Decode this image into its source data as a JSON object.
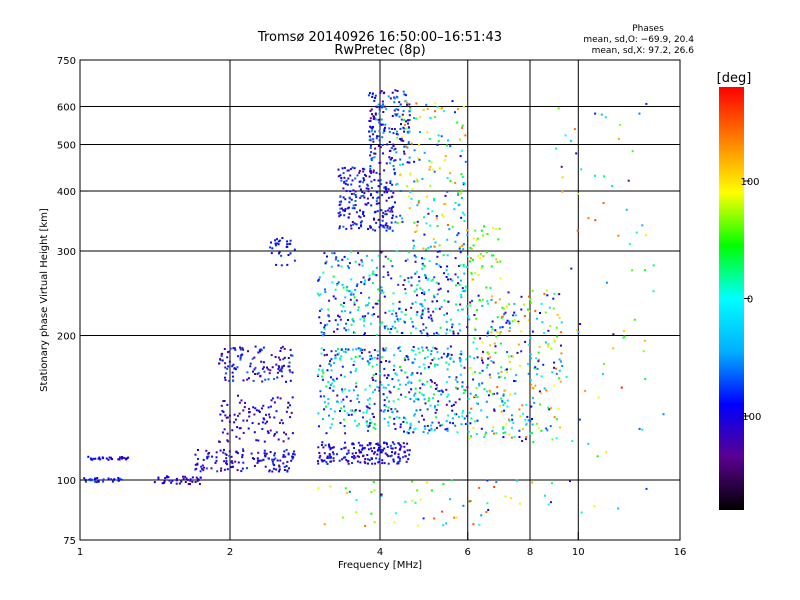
{
  "chart_data": {
    "type": "scatter",
    "title": "Tromsø 20140926 16:50:00–16:51:43",
    "subtitle": "RwPretec (8p)",
    "xlabel": "Frequency [MHz]",
    "ylabel": "Stationary phase Virtual Height [km]",
    "x_scale": "log",
    "y_scale": "log",
    "xlim": [
      1,
      16
    ],
    "ylim": [
      75,
      750
    ],
    "x_ticks": [
      1,
      2,
      4,
      6,
      8,
      10,
      16
    ],
    "y_ticks": [
      75,
      100,
      200,
      300,
      400,
      500,
      600,
      750
    ],
    "x_grid": [
      2,
      4,
      6,
      8,
      10
    ],
    "y_grid": [
      100,
      200,
      300,
      400,
      500,
      600
    ],
    "grid": true,
    "stats": {
      "heading": "Phases",
      "line1": "mean, sd,O: −69.9, 20.4",
      "line2": "mean, sd,X:  97.2, 26.6"
    },
    "colorbar": {
      "label": "[deg]",
      "min": -180,
      "max": 180,
      "ticks": [
        100,
        0,
        -100
      ],
      "colors": [
        "#000000",
        "#5a0090",
        "#0000ff",
        "#00b0ff",
        "#00ffff",
        "#00ff00",
        "#ffff00",
        "#ff8000",
        "#ff0000"
      ]
    },
    "clusters": [
      {
        "f": [
          1.0,
          1.25
        ],
        "h": [
          110,
          112
        ],
        "ph": [
          -120,
          -80
        ],
        "n": 30
      },
      {
        "f": [
          1.0,
          1.25
        ],
        "h": [
          99,
          101
        ],
        "ph": [
          -110,
          -70
        ],
        "n": 30
      },
      {
        "f": [
          1.4,
          1.75
        ],
        "h": [
          98,
          102
        ],
        "ph": [
          -130,
          -90
        ],
        "n": 40
      },
      {
        "f": [
          1.7,
          2.7
        ],
        "h": [
          104,
          116
        ],
        "ph": [
          -140,
          -70
        ],
        "n": 130
      },
      {
        "f": [
          1.9,
          2.7
        ],
        "h": [
          120,
          150
        ],
        "ph": [
          -140,
          -80
        ],
        "n": 100
      },
      {
        "f": [
          1.9,
          2.7
        ],
        "h": [
          160,
          190
        ],
        "ph": [
          -140,
          -60
        ],
        "n": 120
      },
      {
        "f": [
          2.4,
          2.7
        ],
        "h": [
          280,
          320
        ],
        "ph": [
          -110,
          -70
        ],
        "n": 30
      },
      {
        "f": [
          3.0,
          4.6
        ],
        "h": [
          108,
          120
        ],
        "ph": [
          -130,
          -70
        ],
        "n": 180
      },
      {
        "f": [
          3.0,
          6.0
        ],
        "h": [
          125,
          190
        ],
        "ph": [
          -140,
          40
        ],
        "n": 450
      },
      {
        "f": [
          3.0,
          6.0
        ],
        "h": [
          200,
          300
        ],
        "ph": [
          -140,
          40
        ],
        "n": 360
      },
      {
        "f": [
          3.3,
          4.3
        ],
        "h": [
          330,
          450
        ],
        "ph": [
          -140,
          -60
        ],
        "n": 220
      },
      {
        "f": [
          3.8,
          4.6
        ],
        "h": [
          450,
          650
        ],
        "ph": [
          -140,
          -40
        ],
        "n": 180
      },
      {
        "f": [
          4.3,
          6.0
        ],
        "h": [
          300,
          620
        ],
        "ph": [
          -100,
          150
        ],
        "n": 170
      },
      {
        "f": [
          6.0,
          9.3
        ],
        "h": [
          120,
          250
        ],
        "ph": [
          -130,
          150
        ],
        "n": 320
      },
      {
        "f": [
          6.0,
          7.0
        ],
        "h": [
          250,
          340
        ],
        "ph": [
          20,
          140
        ],
        "n": 40
      },
      {
        "f": [
          9.0,
          15.0
        ],
        "h": [
          85,
          650
        ],
        "ph": [
          -150,
          170
        ],
        "n": 70
      },
      {
        "f": [
          3.0,
          9.0
        ],
        "h": [
          80,
          100
        ],
        "ph": [
          -120,
          160
        ],
        "n": 60
      }
    ]
  }
}
